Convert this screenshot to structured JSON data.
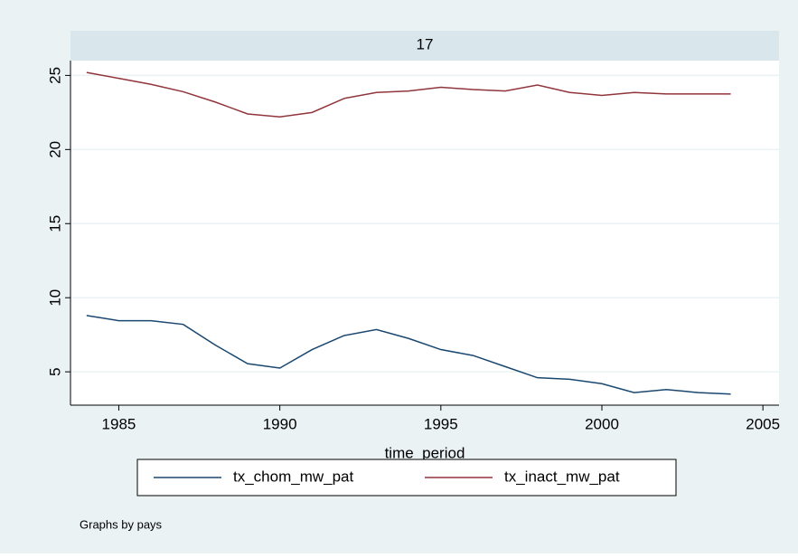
{
  "chart_data": {
    "type": "line",
    "panel_label": "17",
    "x_label": "time_period",
    "note": "Graphs by pays",
    "x": [
      1984,
      1985,
      1986,
      1987,
      1988,
      1989,
      1990,
      1991,
      1992,
      1993,
      1994,
      1995,
      1996,
      1997,
      1998,
      1999,
      2000,
      2001,
      2002,
      2003,
      2004
    ],
    "series": [
      {
        "name": "tx_chom_mw_pat",
        "color": "#1a476f",
        "values": [
          8.8,
          8.45,
          8.45,
          8.2,
          6.8,
          5.55,
          5.25,
          6.5,
          7.45,
          7.85,
          7.25,
          6.5,
          6.1,
          5.35,
          4.6,
          4.5,
          4.2,
          3.6,
          3.8,
          3.6,
          3.5
        ]
      },
      {
        "name": "tx_inact_mw_pat",
        "color": "#90353b",
        "values": [
          25.2,
          24.8,
          24.4,
          23.9,
          23.2,
          22.4,
          22.2,
          22.5,
          23.45,
          23.85,
          23.95,
          24.2,
          24.05,
          23.95,
          24.35,
          23.85,
          23.65,
          23.85,
          23.75,
          23.75,
          23.75
        ]
      }
    ],
    "xlim": [
      1983.5,
      2005.5
    ],
    "xticks": [
      1985,
      1990,
      1995,
      2000,
      2005
    ],
    "ylim": [
      2.75,
      26
    ],
    "yticks": [
      5,
      10,
      15,
      20,
      25
    ],
    "grid": true,
    "legend": "bottom"
  }
}
